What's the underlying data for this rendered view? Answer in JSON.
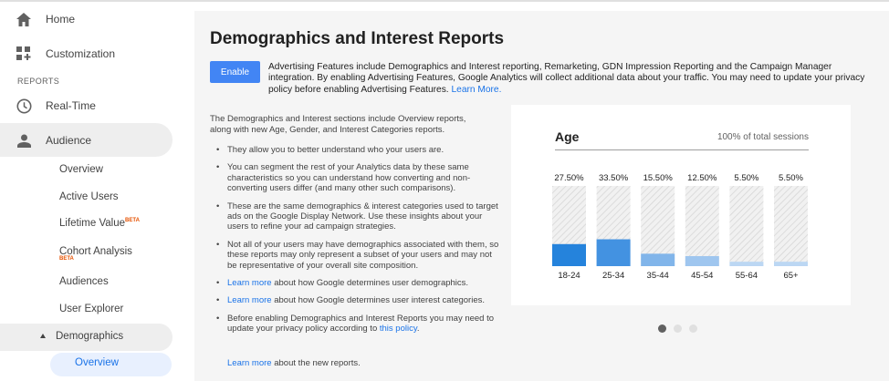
{
  "sidebar": {
    "home_label": "Home",
    "customization_label": "Customization",
    "reports_header": "REPORTS",
    "realtime_label": "Real-Time",
    "audience_label": "Audience",
    "audience_items": {
      "overview": "Overview",
      "active_users": "Active Users",
      "lifetime_value": "Lifetime Value",
      "lifetime_badge": "BETA",
      "cohort_analysis": "Cohort Analysis",
      "cohort_badge": "BETA",
      "audiences": "Audiences",
      "user_explorer": "User Explorer"
    },
    "demographics_label": "Demographics",
    "demographics_overview_label": "Overview"
  },
  "main": {
    "title": "Demographics and Interest Reports",
    "enable_button": "Enable",
    "adv_text": "Advertising Features include Demographics and Interest reporting, Remarketing, GDN Impression Reporting and the Campaign Manager integration. By enabling Advertising Features, Google Analytics will collect additional data about your traffic. You may need to update your privacy policy before enabling Advertising Features.",
    "adv_link": "Learn More.",
    "intro": "The Demographics and Interest sections include Overview reports, along with new Age, Gender, and Interest Categories reports.",
    "bullets": {
      "b1": "They allow you to better understand who your users are.",
      "b2": "You can segment the rest of your Analytics data by these same characteristics so you can understand how converting and non-converting users differ (and many other such comparisons).",
      "b3": "These are the same demographics & interest categories used to target ads on the Google Display Network. Use these insights about your users to refine your ad campaign strategies.",
      "b4": "Not all of your users may have demographics associated with them, so these reports may only represent a subset of your users and may not be representative of your overall site composition.",
      "b5_link": "Learn more",
      "b5_text": " about how Google determines user demographics.",
      "b6_link": "Learn more",
      "b6_text": " about how Google determines user interest categories.",
      "b7_text": "Before enabling Demographics and Interest Reports you may need to update your privacy policy according to ",
      "b7_link": "this policy",
      "b7_end": ".",
      "b8_link": "Learn more",
      "b8_text": " about the new reports."
    },
    "bullet_char": "•"
  },
  "card": {
    "title": "Age",
    "subtitle": "100% of total sessions"
  },
  "chart_data": {
    "type": "bar",
    "title": "Age",
    "categories": [
      "18-24",
      "25-34",
      "35-44",
      "45-54",
      "55-64",
      "65+"
    ],
    "values": [
      27.5,
      33.5,
      15.5,
      12.5,
      5.5,
      5.5
    ],
    "value_labels": [
      "27.50%",
      "33.50%",
      "15.50%",
      "12.50%",
      "5.50%",
      "5.50%"
    ],
    "colors": [
      "#2583dc",
      "#4392e1",
      "#81b5ea",
      "#9fc6ef",
      "#bcd7f3",
      "#bcd7f3"
    ],
    "ylim": [
      0,
      100
    ],
    "grid": false
  }
}
